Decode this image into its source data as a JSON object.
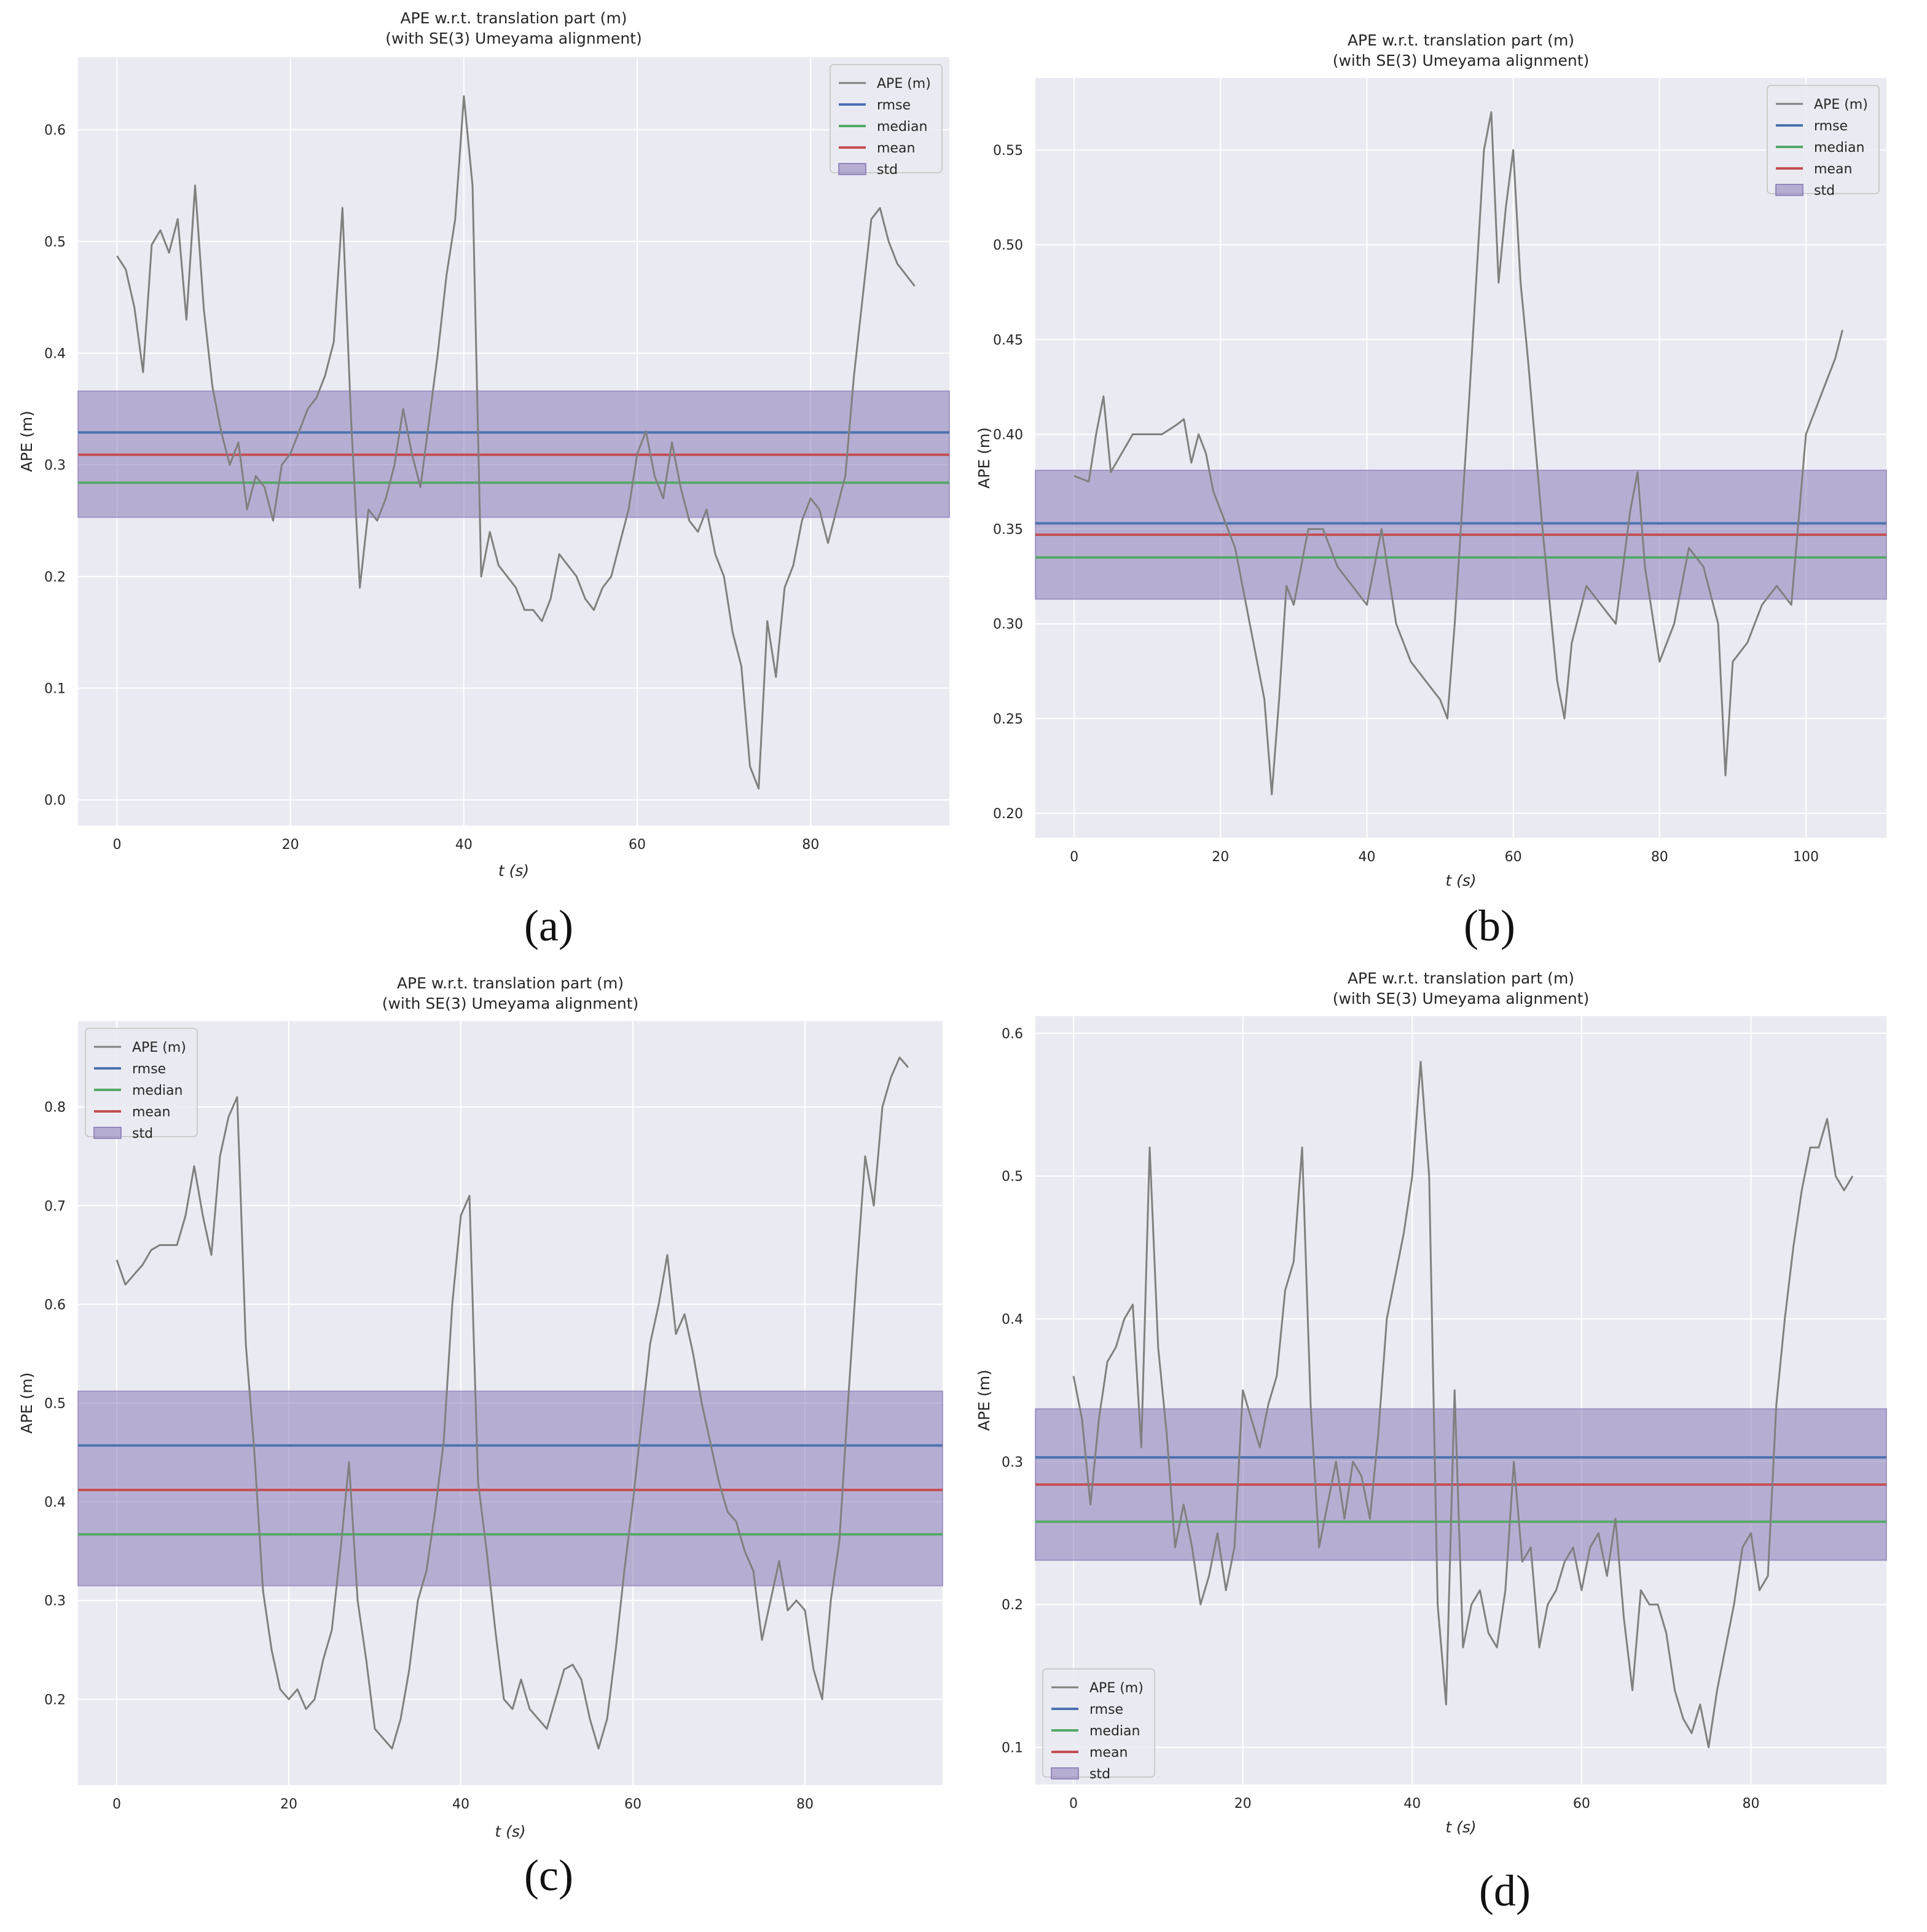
{
  "chart_data": [
    {
      "panel": "(a)",
      "type": "line",
      "title": "APE w.r.t. translation part (m)",
      "subtitle": "(with SE(3) Umeyama alignment)",
      "xlabel": "t (s)",
      "ylabel": "APE (m)",
      "xlim": [
        -4.5,
        96
      ],
      "ylim": [
        -0.023,
        0.665
      ],
      "xticks": [
        0,
        20,
        40,
        60,
        80
      ],
      "yticks": [
        0.0,
        0.1,
        0.2,
        0.3,
        0.4,
        0.5,
        0.6
      ],
      "legend": [
        "APE (m)",
        "rmse",
        "median",
        "mean",
        "std"
      ],
      "legend_loc": "upper right",
      "grid": true,
      "stats": {
        "rmse": 0.329,
        "median": 0.284,
        "mean": 0.309,
        "std_low": 0.253,
        "std_high": 0.366
      },
      "series": [
        {
          "name": "APE (m)",
          "x": [
            0,
            1,
            2,
            3,
            4,
            5,
            6,
            7,
            8,
            9,
            10,
            11,
            12,
            13,
            14,
            15,
            16,
            17,
            18,
            19,
            20,
            21,
            22,
            23,
            24,
            25,
            26,
            27,
            28,
            29,
            30,
            31,
            32,
            33,
            34,
            35,
            36,
            37,
            38,
            39,
            40,
            41,
            42,
            43,
            44,
            45,
            46,
            47,
            48,
            49,
            50,
            51,
            52,
            53,
            54,
            55,
            56,
            57,
            58,
            59,
            60,
            61,
            62,
            63,
            64,
            65,
            66,
            67,
            68,
            69,
            70,
            71,
            72,
            73,
            74,
            75,
            76,
            77,
            78,
            79,
            80,
            81,
            82,
            83,
            84,
            85,
            86,
            87,
            88,
            89,
            90,
            91,
            92
          ],
          "y": [
            0.487,
            0.475,
            0.441,
            0.383,
            0.497,
            0.51,
            0.49,
            0.52,
            0.43,
            0.55,
            0.44,
            0.37,
            0.33,
            0.3,
            0.32,
            0.26,
            0.29,
            0.28,
            0.25,
            0.3,
            0.31,
            0.33,
            0.35,
            0.36,
            0.38,
            0.41,
            0.53,
            0.34,
            0.19,
            0.26,
            0.25,
            0.27,
            0.3,
            0.35,
            0.31,
            0.28,
            0.34,
            0.4,
            0.47,
            0.52,
            0.63,
            0.55,
            0.2,
            0.24,
            0.21,
            0.2,
            0.19,
            0.17,
            0.17,
            0.16,
            0.18,
            0.22,
            0.21,
            0.2,
            0.18,
            0.17,
            0.19,
            0.2,
            0.23,
            0.26,
            0.31,
            0.33,
            0.29,
            0.27,
            0.32,
            0.28,
            0.25,
            0.24,
            0.26,
            0.22,
            0.2,
            0.15,
            0.12,
            0.03,
            0.01,
            0.16,
            0.11,
            0.19,
            0.21,
            0.25,
            0.27,
            0.26,
            0.23,
            0.26,
            0.29,
            0.38,
            0.45,
            0.52,
            0.53,
            0.5,
            0.48,
            0.47,
            0.46
          ]
        }
      ]
    },
    {
      "panel": "(b)",
      "type": "line",
      "title": "APE w.r.t. translation part (m)",
      "subtitle": "(with SE(3) Umeyama alignment)",
      "xlabel": "t (s)",
      "ylabel": "APE (m)",
      "xlim": [
        -5.3,
        111
      ],
      "ylim": [
        0.187,
        0.588
      ],
      "xticks": [
        0,
        20,
        40,
        60,
        80,
        100
      ],
      "yticks": [
        0.2,
        0.25,
        0.3,
        0.35,
        0.4,
        0.45,
        0.5,
        0.55
      ],
      "legend": [
        "APE (m)",
        "rmse",
        "median",
        "mean",
        "std"
      ],
      "legend_loc": "upper right",
      "grid": true,
      "stats": {
        "rmse": 0.353,
        "median": 0.335,
        "mean": 0.347,
        "std_low": 0.313,
        "std_high": 0.381
      },
      "series": [
        {
          "name": "APE (m)",
          "x": [
            0,
            2,
            3,
            4,
            5,
            8,
            12,
            14,
            15,
            16,
            17,
            18,
            19,
            20,
            22,
            24,
            26,
            27,
            28,
            29,
            30,
            32,
            34,
            36,
            38,
            40,
            42,
            44,
            46,
            48,
            50,
            51,
            52,
            54,
            56,
            57,
            58,
            59,
            60,
            61,
            62,
            64,
            66,
            67,
            68,
            70,
            72,
            74,
            76,
            77,
            78,
            80,
            82,
            84,
            86,
            88,
            89,
            90,
            92,
            94,
            96,
            98,
            100,
            102,
            104,
            105
          ],
          "y": [
            0.378,
            0.375,
            0.4,
            0.42,
            0.38,
            0.4,
            0.4,
            0.405,
            0.408,
            0.385,
            0.4,
            0.39,
            0.37,
            0.36,
            0.34,
            0.3,
            0.26,
            0.21,
            0.26,
            0.32,
            0.31,
            0.35,
            0.35,
            0.33,
            0.32,
            0.31,
            0.35,
            0.3,
            0.28,
            0.27,
            0.26,
            0.25,
            0.3,
            0.42,
            0.55,
            0.57,
            0.48,
            0.52,
            0.55,
            0.48,
            0.44,
            0.35,
            0.27,
            0.25,
            0.29,
            0.32,
            0.31,
            0.3,
            0.36,
            0.38,
            0.33,
            0.28,
            0.3,
            0.34,
            0.33,
            0.3,
            0.22,
            0.28,
            0.29,
            0.31,
            0.32,
            0.31,
            0.4,
            0.42,
            0.44,
            0.455
          ]
        }
      ]
    },
    {
      "panel": "(c)",
      "type": "line",
      "title": "APE w.r.t. translation part (m)",
      "subtitle": "(with SE(3) Umeyama alignment)",
      "xlabel": "t (s)",
      "ylabel": "APE (m)",
      "xlim": [
        -4.5,
        96
      ],
      "ylim": [
        0.113,
        0.887
      ],
      "xticks": [
        0,
        20,
        40,
        60,
        80
      ],
      "yticks": [
        0.2,
        0.3,
        0.4,
        0.5,
        0.6,
        0.7,
        0.8
      ],
      "legend": [
        "APE (m)",
        "rmse",
        "median",
        "mean",
        "std"
      ],
      "legend_loc": "upper left",
      "grid": true,
      "stats": {
        "rmse": 0.457,
        "median": 0.367,
        "mean": 0.412,
        "std_low": 0.315,
        "std_high": 0.512
      },
      "series": [
        {
          "name": "APE (m)",
          "x": [
            0,
            1,
            2,
            3,
            4,
            5,
            6,
            7,
            8,
            9,
            10,
            11,
            12,
            13,
            14,
            15,
            16,
            17,
            18,
            19,
            20,
            21,
            22,
            23,
            24,
            25,
            26,
            27,
            28,
            29,
            30,
            31,
            32,
            33,
            34,
            35,
            36,
            37,
            38,
            39,
            40,
            41,
            42,
            43,
            44,
            45,
            46,
            47,
            48,
            49,
            50,
            51,
            52,
            53,
            54,
            55,
            56,
            57,
            58,
            59,
            60,
            61,
            62,
            63,
            64,
            65,
            66,
            67,
            68,
            69,
            70,
            71,
            72,
            73,
            74,
            75,
            76,
            77,
            78,
            79,
            80,
            81,
            82,
            83,
            84,
            85,
            86,
            87,
            88,
            89,
            90,
            91,
            92
          ],
          "y": [
            0.645,
            0.62,
            0.63,
            0.64,
            0.655,
            0.66,
            0.66,
            0.66,
            0.69,
            0.74,
            0.69,
            0.65,
            0.75,
            0.79,
            0.81,
            0.56,
            0.45,
            0.31,
            0.25,
            0.21,
            0.2,
            0.21,
            0.19,
            0.2,
            0.24,
            0.27,
            0.35,
            0.44,
            0.3,
            0.24,
            0.17,
            0.16,
            0.15,
            0.18,
            0.23,
            0.3,
            0.33,
            0.39,
            0.46,
            0.6,
            0.69,
            0.71,
            0.42,
            0.35,
            0.27,
            0.2,
            0.19,
            0.22,
            0.19,
            0.18,
            0.17,
            0.2,
            0.23,
            0.235,
            0.22,
            0.18,
            0.15,
            0.18,
            0.25,
            0.33,
            0.4,
            0.48,
            0.56,
            0.6,
            0.65,
            0.57,
            0.59,
            0.55,
            0.5,
            0.46,
            0.42,
            0.39,
            0.38,
            0.35,
            0.33,
            0.26,
            0.3,
            0.34,
            0.29,
            0.3,
            0.29,
            0.23,
            0.2,
            0.3,
            0.36,
            0.5,
            0.63,
            0.75,
            0.7,
            0.8,
            0.83,
            0.85,
            0.84
          ]
        }
      ]
    },
    {
      "panel": "(d)",
      "type": "line",
      "title": "APE w.r.t. translation part (m)",
      "subtitle": "(with SE(3) Umeyama alignment)",
      "xlabel": "t (s)",
      "ylabel": "APE (m)",
      "xlim": [
        -4.5,
        96
      ],
      "ylim": [
        0.074,
        0.612
      ],
      "xticks": [
        0,
        20,
        40,
        60,
        80
      ],
      "yticks": [
        0.1,
        0.2,
        0.3,
        0.4,
        0.5,
        0.6
      ],
      "legend": [
        "APE (m)",
        "rmse",
        "median",
        "mean",
        "std"
      ],
      "legend_loc": "lower left",
      "grid": true,
      "stats": {
        "rmse": 0.303,
        "median": 0.258,
        "mean": 0.284,
        "std_low": 0.231,
        "std_high": 0.337
      },
      "series": [
        {
          "name": "APE (m)",
          "x": [
            0,
            1,
            2,
            3,
            4,
            5,
            6,
            7,
            8,
            9,
            10,
            11,
            12,
            13,
            14,
            15,
            16,
            17,
            18,
            19,
            20,
            21,
            22,
            23,
            24,
            25,
            26,
            27,
            28,
            29,
            30,
            31,
            32,
            33,
            34,
            35,
            36,
            37,
            38,
            39,
            40,
            41,
            42,
            43,
            44,
            45,
            46,
            47,
            48,
            49,
            50,
            51,
            52,
            53,
            54,
            55,
            56,
            57,
            58,
            59,
            60,
            61,
            62,
            63,
            64,
            65,
            66,
            67,
            68,
            69,
            70,
            71,
            72,
            73,
            74,
            75,
            76,
            77,
            78,
            79,
            80,
            81,
            82,
            83,
            84,
            85,
            86,
            87,
            88,
            89,
            90,
            91,
            92
          ],
          "y": [
            0.36,
            0.33,
            0.27,
            0.33,
            0.37,
            0.38,
            0.4,
            0.41,
            0.31,
            0.52,
            0.38,
            0.32,
            0.24,
            0.27,
            0.24,
            0.2,
            0.22,
            0.25,
            0.21,
            0.24,
            0.35,
            0.33,
            0.31,
            0.34,
            0.36,
            0.42,
            0.44,
            0.52,
            0.34,
            0.24,
            0.27,
            0.3,
            0.26,
            0.3,
            0.29,
            0.26,
            0.32,
            0.4,
            0.43,
            0.46,
            0.5,
            0.58,
            0.5,
            0.2,
            0.13,
            0.35,
            0.17,
            0.2,
            0.21,
            0.18,
            0.17,
            0.21,
            0.3,
            0.23,
            0.24,
            0.17,
            0.2,
            0.21,
            0.23,
            0.24,
            0.21,
            0.24,
            0.25,
            0.22,
            0.26,
            0.19,
            0.14,
            0.21,
            0.2,
            0.2,
            0.18,
            0.14,
            0.12,
            0.11,
            0.13,
            0.1,
            0.14,
            0.17,
            0.2,
            0.24,
            0.25,
            0.21,
            0.22,
            0.34,
            0.4,
            0.45,
            0.49,
            0.52,
            0.52,
            0.54,
            0.5,
            0.49,
            0.5
          ]
        }
      ]
    }
  ],
  "panel_labels": [
    "(a)",
    "(b)",
    "(c)",
    "(d)"
  ],
  "colors": {
    "plot_bg": "#EAEAF2",
    "grid": "#FFFFFF",
    "ape": "#808080",
    "rmse": "#4C72B0",
    "median": "#55A868",
    "mean": "#C44E52",
    "std_fill": "#8172B2"
  }
}
